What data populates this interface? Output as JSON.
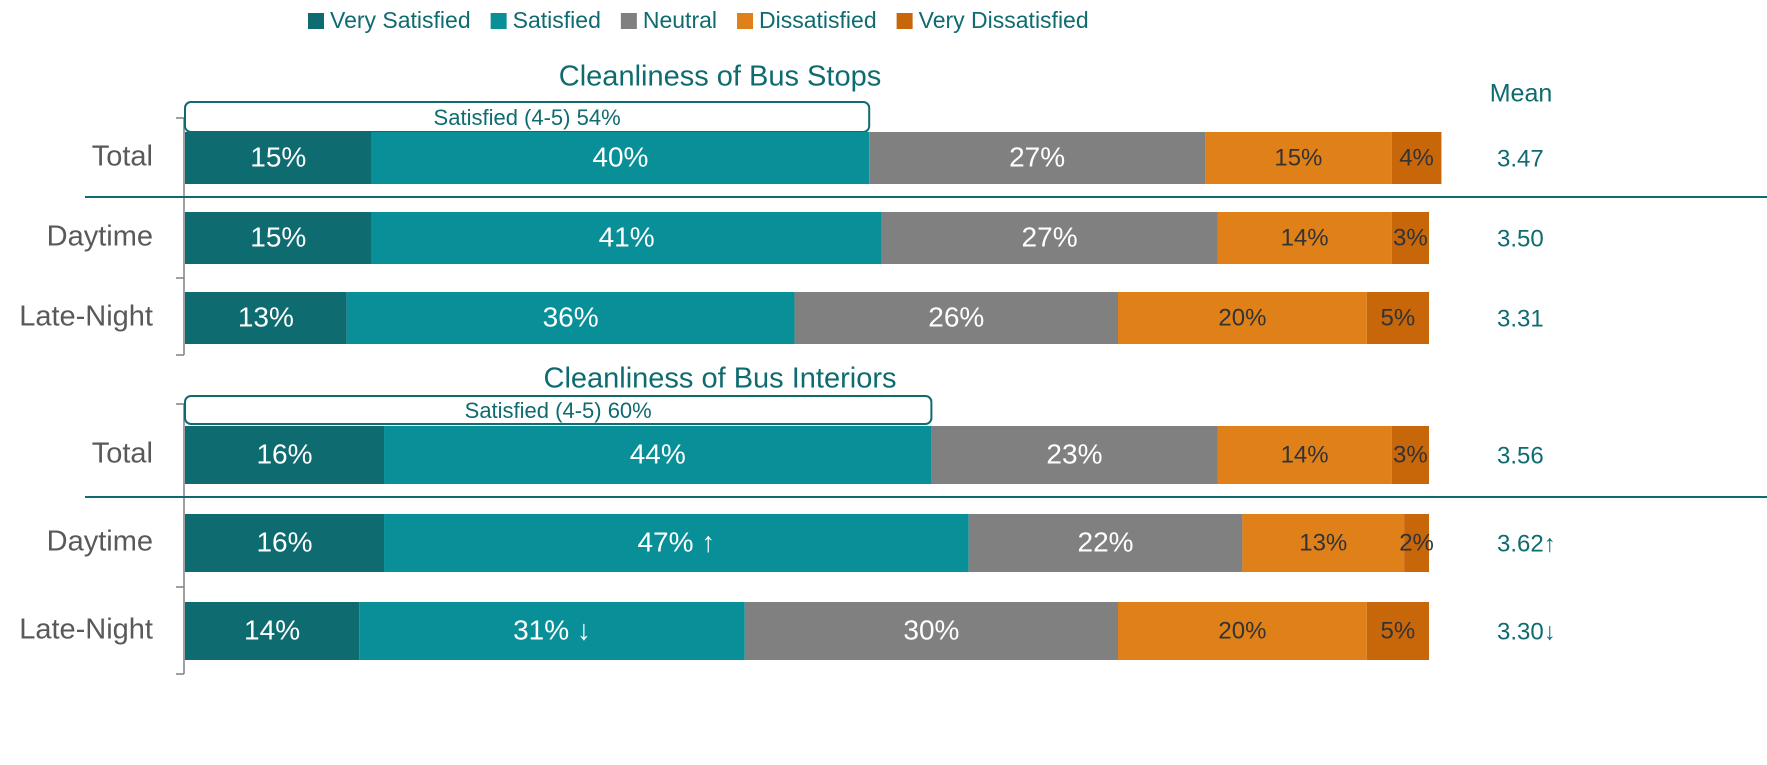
{
  "chart_data": [
    {
      "type": "stacked-bar",
      "title": "Cleanliness of Bus Stops",
      "annotation": "Satisfied (4-5) 54%",
      "categories": [
        "Total",
        "Daytime",
        "Late-Night"
      ],
      "series": [
        {
          "name": "Very Satisfied",
          "color": "#0e6b70",
          "values": [
            15,
            15,
            13
          ],
          "value_labels": [
            "15%",
            "15%",
            "13%"
          ]
        },
        {
          "name": "Satisfied",
          "color": "#088f97",
          "values": [
            40,
            41,
            36
          ],
          "value_labels": [
            "40%",
            "41%",
            "36%"
          ]
        },
        {
          "name": "Neutral",
          "color": "#808080",
          "values": [
            27,
            27,
            26
          ],
          "value_labels": [
            "27%",
            "27%",
            "26%"
          ]
        },
        {
          "name": "Dissatisfied",
          "color": "#e08018",
          "values": [
            15,
            14,
            20
          ],
          "value_labels": [
            "15%",
            "14%",
            "20%"
          ]
        },
        {
          "name": "Very Dissatisfied",
          "color": "#c8660a",
          "values": [
            4,
            3,
            5
          ],
          "value_labels": [
            "4%",
            "3%",
            "5%"
          ]
        }
      ],
      "mean": {
        "name": "Mean",
        "values": [
          3.47,
          3.5,
          3.31
        ],
        "value_labels": [
          "3.47",
          "3.50",
          "3.31"
        ]
      }
    },
    {
      "type": "stacked-bar",
      "title": "Cleanliness of Bus Interiors",
      "annotation": "Satisfied (4-5) 60%",
      "categories": [
        "Total",
        "Daytime",
        "Late-Night"
      ],
      "series": [
        {
          "name": "Very Satisfied",
          "color": "#0e6b70",
          "values": [
            16,
            16,
            14
          ],
          "value_labels": [
            "16%",
            "16%",
            "14%"
          ]
        },
        {
          "name": "Satisfied",
          "color": "#088f97",
          "values": [
            44,
            47,
            31
          ],
          "value_labels": [
            "44%",
            "47% ↑",
            "31% ↓"
          ]
        },
        {
          "name": "Neutral",
          "color": "#808080",
          "values": [
            23,
            22,
            30
          ],
          "value_labels": [
            "23%",
            "22%",
            "30%"
          ]
        },
        {
          "name": "Dissatisfied",
          "color": "#e08018",
          "values": [
            14,
            13,
            20
          ],
          "value_labels": [
            "14%",
            "13%",
            "20%"
          ]
        },
        {
          "name": "Very Dissatisfied",
          "color": "#c8660a",
          "values": [
            3,
            2,
            5
          ],
          "value_labels": [
            "3%",
            "2%",
            "5%"
          ]
        }
      ],
      "mean": {
        "values": [
          3.56,
          3.62,
          3.3
        ],
        "value_labels": [
          "3.56",
          "3.62↑",
          "3.30↓"
        ]
      }
    }
  ]
}
